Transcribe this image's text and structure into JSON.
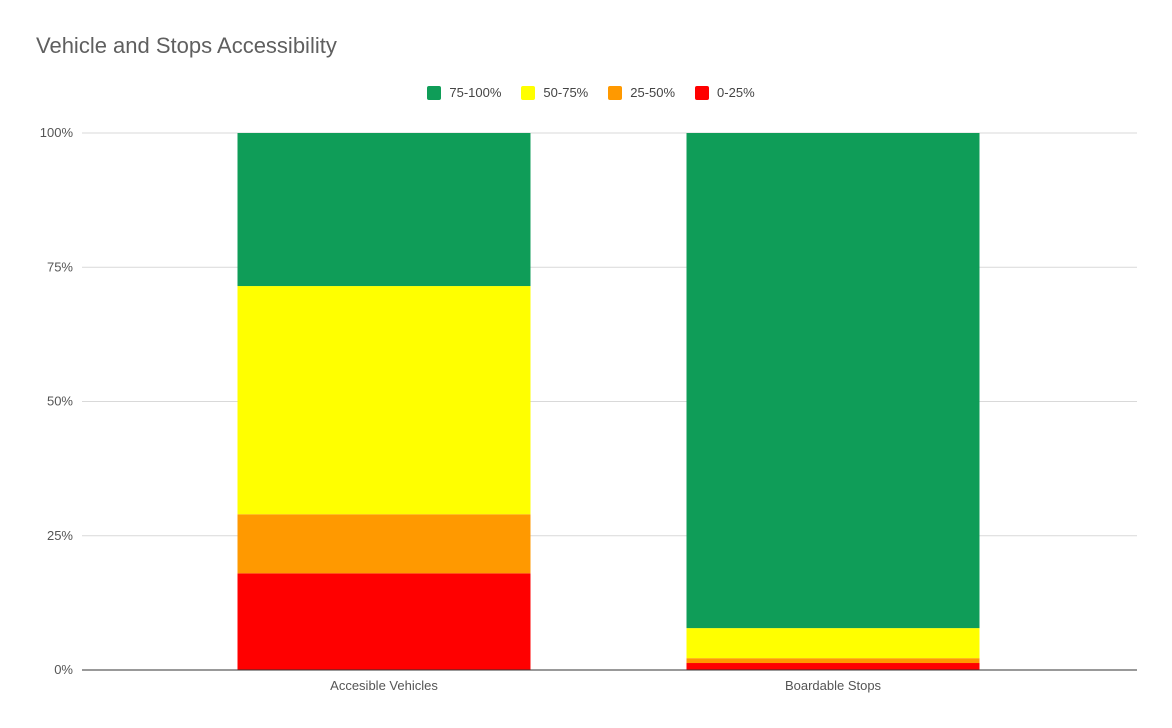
{
  "chart_data": {
    "type": "bar",
    "stacked": true,
    "title": "Vehicle and Stops Accessibility",
    "xlabel": "",
    "ylabel": "",
    "categories": [
      "Accesible Vehicles",
      "Boardable Stops"
    ],
    "series": [
      {
        "name": "0-25%",
        "color": "#ff0000",
        "values": [
          18,
          1.3
        ]
      },
      {
        "name": "25-50%",
        "color": "#ff9900",
        "values": [
          11,
          0.9
        ]
      },
      {
        "name": "50-75%",
        "color": "#ffff00",
        "values": [
          42.5,
          5.6
        ]
      },
      {
        "name": "75-100%",
        "color": "#0f9d58",
        "values": [
          28.5,
          92.2
        ]
      }
    ],
    "legend_order": [
      "75-100%",
      "50-75%",
      "25-50%",
      "0-25%"
    ],
    "legend_position": "top",
    "ylim": [
      0,
      100
    ],
    "yticks": [
      0,
      25,
      50,
      75,
      100
    ],
    "ytick_labels": [
      "0%",
      "25%",
      "50%",
      "75%",
      "100%"
    ],
    "grid": true
  }
}
